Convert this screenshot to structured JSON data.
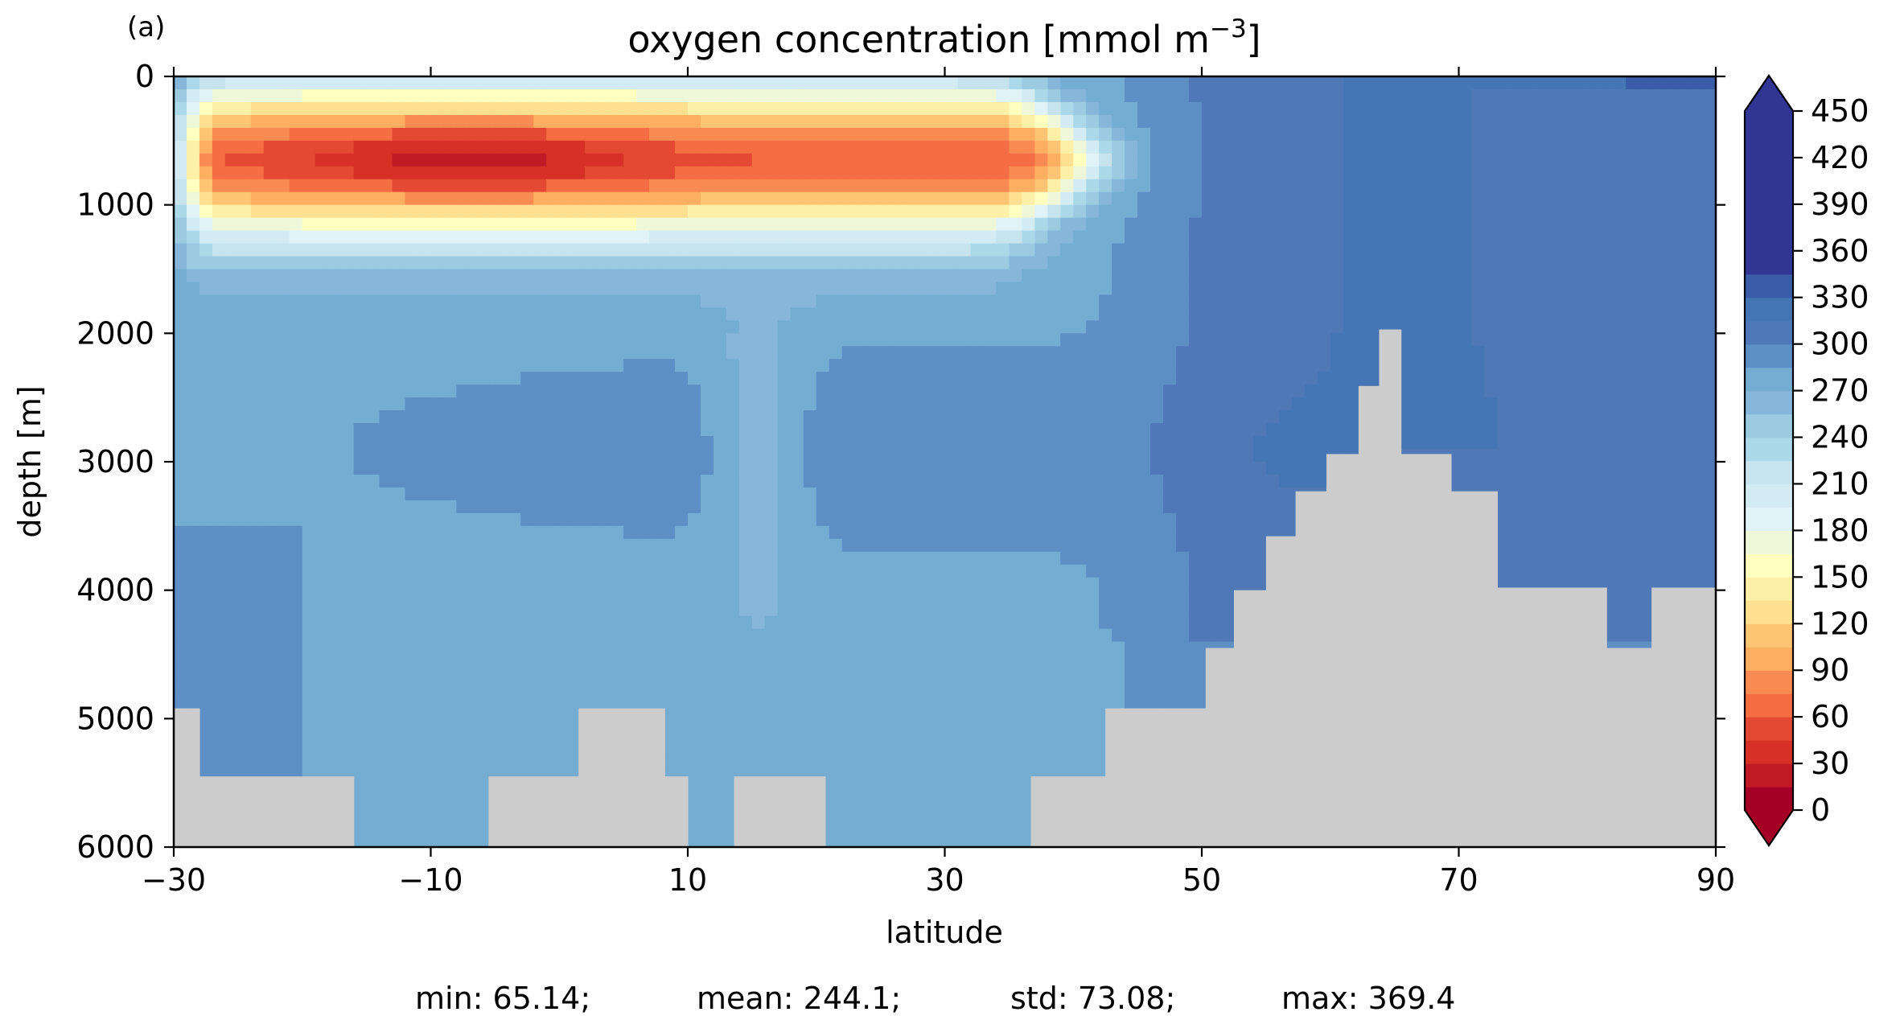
{
  "panel_label": "(a)",
  "title_main": "oxygen concentration [mmol m",
  "title_sup": "−3",
  "title_end": "]",
  "stats_line": {
    "min": "min: 65.14;",
    "mean": "mean: 244.1;",
    "std": "std: 73.08;",
    "max": "max: 369.4"
  },
  "colors": {
    "land": "#cccccc",
    "axis": "#000000",
    "background": "#ffffff"
  },
  "chart_data": {
    "type": "heatmap",
    "title": "oxygen concentration [mmol m−3]",
    "xlabel": "latitude",
    "ylabel": "depth [m]",
    "xlim": [
      -30,
      90
    ],
    "ylim": [
      6000,
      0
    ],
    "y_inverted": true,
    "x_ticks": [
      -30,
      -10,
      10,
      30,
      50,
      70,
      90
    ],
    "x_tick_labels": [
      "−30",
      "−10",
      "10",
      "30",
      "50",
      "70",
      "90"
    ],
    "y_ticks": [
      0,
      1000,
      2000,
      3000,
      4000,
      5000,
      6000
    ],
    "y_tick_labels": [
      "0",
      "1000",
      "2000",
      "3000",
      "4000",
      "5000",
      "6000"
    ],
    "colorbar": {
      "cmap": "RdYlBu",
      "vmin": 0,
      "vmax": 450,
      "step": 15,
      "extend": "both",
      "ticks": [
        0,
        30,
        60,
        90,
        120,
        150,
        180,
        210,
        240,
        270,
        300,
        330,
        360,
        390,
        420,
        450
      ],
      "levels": [
        "#a50026",
        "#c01a27",
        "#d73027",
        "#e34933",
        "#f46d43",
        "#f78b51",
        "#fdae61",
        "#fdc474",
        "#fee090",
        "#fff0a8",
        "#ffffbf",
        "#eef8d8",
        "#e0f3f8",
        "#d3ecf3",
        "#c6e3ee",
        "#abd9e9",
        "#9bcae1",
        "#86b6d9",
        "#74add1",
        "#5d8ec4",
        "#4f79b6",
        "#4575b4",
        "#3b5ca6",
        "#313695"
      ],
      "over_color": "#313695",
      "under_color": "#a50026"
    },
    "land_mask_bottom_depth": [
      {
        "lat_from": -30,
        "lat_to": -28,
        "depth_top": 4920
      },
      {
        "lat_from": -28,
        "lat_to": -16,
        "depth_top": 5450
      },
      {
        "lat_from": -5.5,
        "lat_to": 1.5,
        "depth_top": 5450
      },
      {
        "lat_from": 1.5,
        "lat_to": 8.2,
        "depth_top": 4920
      },
      {
        "lat_from": 8.2,
        "lat_to": 10,
        "depth_top": 5450
      },
      {
        "lat_from": 13.6,
        "lat_to": 20.7,
        "depth_top": 5450
      },
      {
        "lat_from": 36.7,
        "lat_to": 42.5,
        "depth_top": 5450
      },
      {
        "lat_from": 42.5,
        "lat_to": 50.3,
        "depth_top": 4920
      },
      {
        "lat_from": 50.3,
        "lat_to": 52.5,
        "depth_top": 4450
      },
      {
        "lat_from": 52.5,
        "lat_to": 55,
        "depth_top": 4000
      },
      {
        "lat_from": 55,
        "lat_to": 57.3,
        "depth_top": 3580
      },
      {
        "lat_from": 57.3,
        "lat_to": 59.7,
        "depth_top": 3230
      },
      {
        "lat_from": 59.7,
        "lat_to": 62.2,
        "depth_top": 2940
      },
      {
        "lat_from": 62.2,
        "lat_to": 63.8,
        "depth_top": 2410
      },
      {
        "lat_from": 63.8,
        "lat_to": 65.5,
        "depth_top": 1970
      },
      {
        "lat_from": 65.5,
        "lat_to": 69.4,
        "depth_top": 2940
      },
      {
        "lat_from": 69.4,
        "lat_to": 73,
        "depth_top": 3230
      },
      {
        "lat_from": 73,
        "lat_to": 81.5,
        "depth_top": 3980
      },
      {
        "lat_from": 81.5,
        "lat_to": 85,
        "depth_top": 4450
      },
      {
        "lat_from": 85,
        "lat_to": 90,
        "depth_top": 3980
      }
    ],
    "approx_regions": [
      {
        "lat": [
          -28,
          43
        ],
        "depth": [
          0,
          1600
        ],
        "value_range": [
          65,
          230
        ],
        "note_min": "core ~65-90 near -10 to 0, 200-1100 m"
      },
      {
        "lat": [
          -30,
          50
        ],
        "depth": [
          1600,
          6000
        ],
        "value_range": [
          255,
          300
        ]
      },
      {
        "lat": [
          12,
          18
        ],
        "depth": [
          1900,
          4500
        ],
        "value_range": [
          240,
          255
        ]
      },
      {
        "lat": [
          47,
          90
        ],
        "depth": [
          0,
          4500
        ],
        "value_range": [
          300,
          320
        ]
      },
      {
        "lat": [
          62,
          72
        ],
        "depth": [
          0,
          2800
        ],
        "value_range": [
          315,
          330
        ]
      },
      {
        "lat": [
          70,
          90
        ],
        "depth": [
          0,
          100
        ],
        "value_range": [
          330,
          369
        ]
      }
    ],
    "stats": {
      "min": 65.14,
      "mean": 244.1,
      "std": 73.08,
      "max": 369.4
    }
  }
}
